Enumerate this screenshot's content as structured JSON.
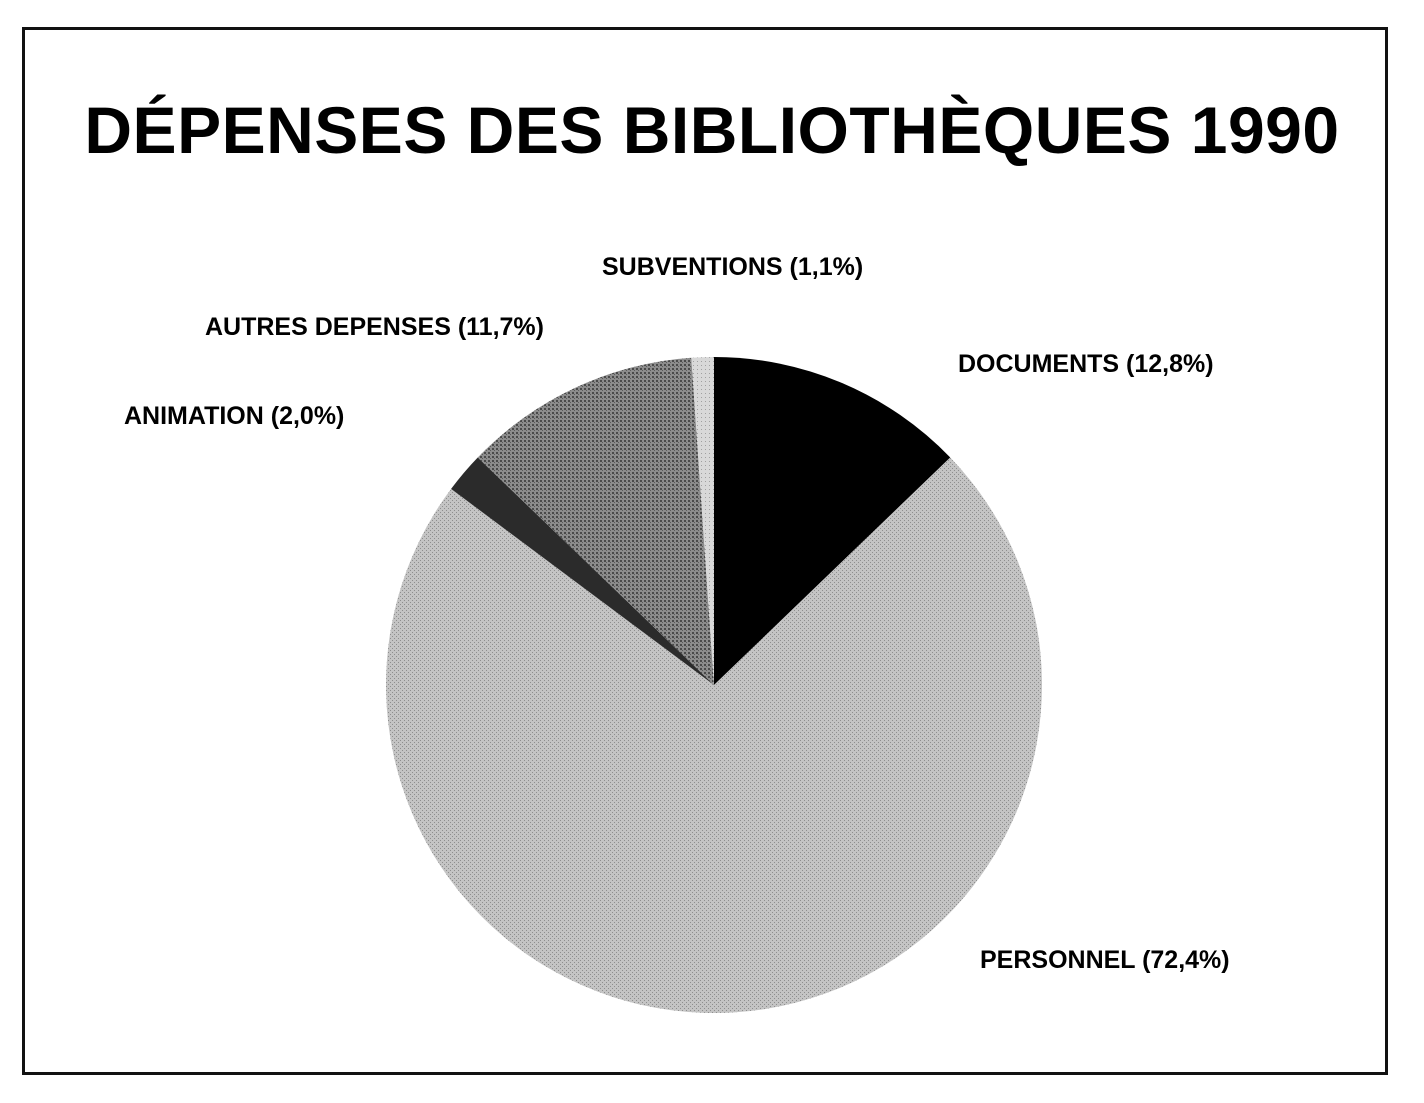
{
  "chart_data": {
    "type": "pie",
    "title": "DÉPENSES DES BIBLIOTHÈQUES 1990",
    "slices": [
      {
        "label": "DOCUMENTS (12,8%)",
        "value": 12.8,
        "color": "#000000",
        "pattern": "solid"
      },
      {
        "label": "PERSONNEL (72,4%)",
        "value": 72.4,
        "color": "#b8b8b8",
        "pattern": "fine-dots"
      },
      {
        "label": "ANIMATION (2,0%)",
        "value": 2.0,
        "color": "#2b2b2b",
        "pattern": "solid"
      },
      {
        "label": "AUTRES DEPENSES (11,7%)",
        "value": 11.7,
        "color": "#7d7d7d",
        "pattern": "medium-dots"
      },
      {
        "label": "SUBVENTIONS (1,1%)",
        "value": 1.1,
        "color": "#d2d2d2",
        "pattern": "light-dots"
      }
    ],
    "start_angle_deg": 0,
    "direction": "clockwise"
  }
}
